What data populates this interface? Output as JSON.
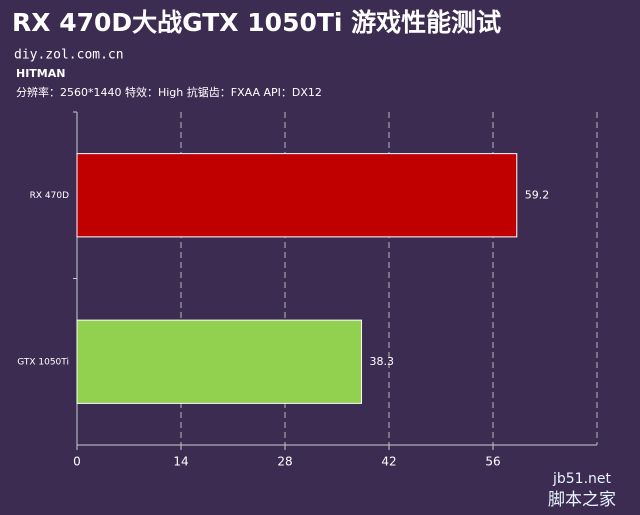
{
  "chart_data": {
    "type": "barh",
    "title": "RX 470D大战GTX 1050Ti 游戏性能测试",
    "source": "diy.zol.com.cn",
    "subtitle": "HITMAN",
    "settings": "分辨率：2560*1440  特效：High  抗锯齿：FXAA  API：DX12",
    "categories": [
      "RX 470D",
      "GTX 1050Ti"
    ],
    "series": [
      {
        "colors": [
          "#c00000",
          "#92d050"
        ],
        "values": [
          59.2,
          38.3
        ]
      }
    ],
    "xlim": [
      0,
      70
    ],
    "xticks": [
      0,
      14,
      28,
      42,
      56
    ],
    "grid": true,
    "watermark": [
      "jb51.net",
      "脚本之家"
    ]
  }
}
